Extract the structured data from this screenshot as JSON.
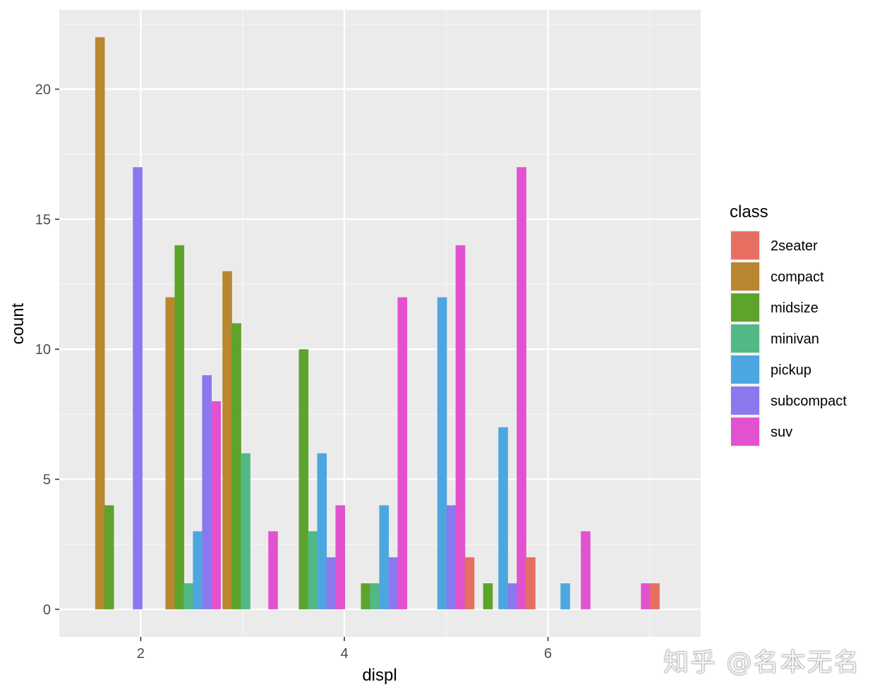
{
  "chart_data": {
    "type": "bar",
    "xlabel": "displ",
    "ylabel": "count",
    "xlim": [
      1.2,
      7.5
    ],
    "ylim": [
      -1.06,
      23.05
    ],
    "x_ticks": [
      2,
      4,
      6
    ],
    "y_ticks": [
      0,
      5,
      10,
      15,
      20
    ],
    "grid": true,
    "legend_position": "right",
    "legend_title": "class",
    "classes": [
      {
        "name": "2seater",
        "color": "#E76F61"
      },
      {
        "name": "compact",
        "color": "#B8872F"
      },
      {
        "name": "midsize",
        "color": "#5DA42C"
      },
      {
        "name": "minivan",
        "color": "#52B886"
      },
      {
        "name": "pickup",
        "color": "#4CA7E1"
      },
      {
        "name": "subcompact",
        "color": "#8A78EF"
      },
      {
        "name": "suv",
        "color": "#E252CF"
      }
    ],
    "bars": [
      {
        "x": 1.6,
        "class": "compact",
        "value": 22
      },
      {
        "x": 1.69,
        "class": "midsize",
        "value": 4
      },
      {
        "x": 1.97,
        "class": "subcompact",
        "value": 17
      },
      {
        "x": 2.29,
        "class": "compact",
        "value": 12
      },
      {
        "x": 2.38,
        "class": "midsize",
        "value": 14
      },
      {
        "x": 2.47,
        "class": "minivan",
        "value": 1
      },
      {
        "x": 2.56,
        "class": "pickup",
        "value": 3
      },
      {
        "x": 2.65,
        "class": "subcompact",
        "value": 9
      },
      {
        "x": 2.74,
        "class": "suv",
        "value": 8
      },
      {
        "x": 2.85,
        "class": "compact",
        "value": 13
      },
      {
        "x": 2.94,
        "class": "midsize",
        "value": 11
      },
      {
        "x": 3.03,
        "class": "minivan",
        "value": 6
      },
      {
        "x": 3.3,
        "class": "suv",
        "value": 3
      },
      {
        "x": 3.6,
        "class": "midsize",
        "value": 10
      },
      {
        "x": 3.69,
        "class": "minivan",
        "value": 3
      },
      {
        "x": 3.78,
        "class": "pickup",
        "value": 6
      },
      {
        "x": 3.87,
        "class": "subcompact",
        "value": 2
      },
      {
        "x": 3.96,
        "class": "suv",
        "value": 4
      },
      {
        "x": 4.21,
        "class": "midsize",
        "value": 1
      },
      {
        "x": 4.3,
        "class": "minivan",
        "value": 1
      },
      {
        "x": 4.39,
        "class": "pickup",
        "value": 4
      },
      {
        "x": 4.48,
        "class": "subcompact",
        "value": 2
      },
      {
        "x": 4.57,
        "class": "suv",
        "value": 12
      },
      {
        "x": 4.96,
        "class": "pickup",
        "value": 12
      },
      {
        "x": 5.05,
        "class": "subcompact",
        "value": 4
      },
      {
        "x": 5.14,
        "class": "suv",
        "value": 14
      },
      {
        "x": 5.23,
        "class": "2seater",
        "value": 2
      },
      {
        "x": 5.41,
        "class": "midsize",
        "value": 1
      },
      {
        "x": 5.56,
        "class": "pickup",
        "value": 7
      },
      {
        "x": 5.65,
        "class": "subcompact",
        "value": 1
      },
      {
        "x": 5.74,
        "class": "suv",
        "value": 17
      },
      {
        "x": 5.83,
        "class": "2seater",
        "value": 2
      },
      {
        "x": 6.17,
        "class": "pickup",
        "value": 1
      },
      {
        "x": 6.37,
        "class": "suv",
        "value": 3
      },
      {
        "x": 6.96,
        "class": "suv",
        "value": 1
      },
      {
        "x": 7.05,
        "class": "2seater",
        "value": 1
      }
    ]
  },
  "watermark": "知乎 @名本无名"
}
